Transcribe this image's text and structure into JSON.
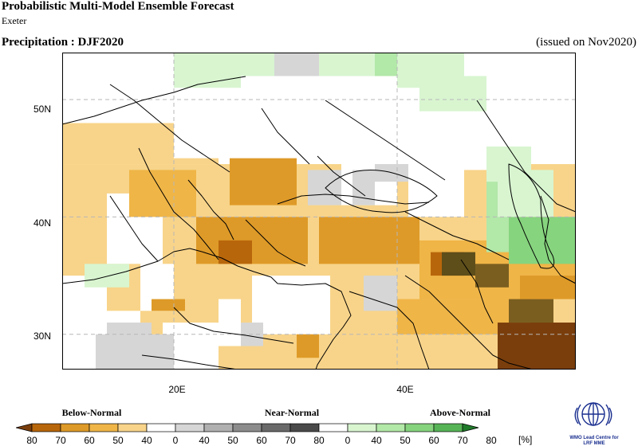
{
  "header": {
    "title": "Probabilistic Multi-Model Ensemble Forecast",
    "subtitle": "Exeter",
    "variable": "Precipitation : DJF2020",
    "issued": "(issued on Nov2020)"
  },
  "map": {
    "lon_range": [
      10,
      56
    ],
    "lat_range": [
      27,
      54
    ],
    "lat_ticks": [
      {
        "value": 30,
        "label": "30N"
      },
      {
        "value": 40,
        "label": "40N"
      },
      {
        "value": 50,
        "label": "50N"
      }
    ],
    "lon_ticks": [
      {
        "value": 20,
        "label": "20E"
      },
      {
        "value": 40,
        "label": "40E"
      }
    ],
    "grid_step_deg": 2.5
  },
  "legend": {
    "categories": [
      "Below-Normal",
      "Near-Normal",
      "Above-Normal"
    ],
    "ticks": [
      "80",
      "70",
      "60",
      "50",
      "40",
      "0",
      "40",
      "50",
      "60",
      "70",
      "80",
      "0",
      "40",
      "50",
      "60",
      "70",
      "80"
    ],
    "unit": "[%]",
    "colors": [
      "#7a3e0c",
      "#b8660b",
      "#de9a28",
      "#efb547",
      "#f8d48a",
      "#ffffff",
      "#d6d6d6",
      "#b0b0b0",
      "#8c8c8c",
      "#6a6a6a",
      "#4a4a4a",
      "#ffffff",
      "#d8f5d0",
      "#b2e8a8",
      "#86d47e",
      "#56b457",
      "#1f7a2a"
    ]
  },
  "logo": {
    "line1": "WMO Lead Centre for",
    "line2": "LRF MME"
  }
}
